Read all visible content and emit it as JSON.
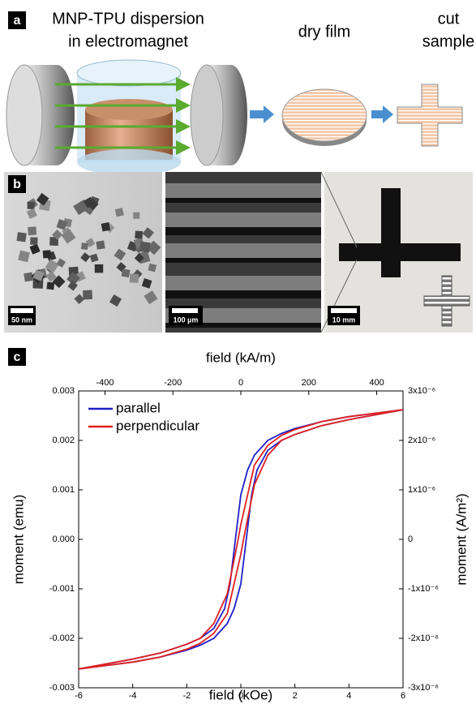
{
  "panels": {
    "a": {
      "label": "a",
      "step1_line1": "MNP-TPU dispersion",
      "step1_line2": "in electromagnet",
      "step2": "dry film",
      "step3_line1": "cut",
      "step3_line2": "sample"
    },
    "b": {
      "label": "b",
      "scale1": "50 nm",
      "scale2": "100 µm",
      "scale3": "10 mm"
    },
    "c": {
      "label": "c"
    }
  },
  "chart_data": {
    "type": "line",
    "x_label": "field (kOe)",
    "x2_label": "field (kA/m)",
    "y_label": "moment (emu)",
    "y2_label": "moment (A/m²)",
    "xlim": [
      -6,
      6
    ],
    "xticks": [
      -6,
      -4,
      -2,
      0,
      2,
      4,
      6
    ],
    "x2lim": [
      -477.5,
      477.5
    ],
    "x2ticks": [
      -400,
      -200,
      0,
      200,
      400
    ],
    "ylim": [
      -0.003,
      0.003
    ],
    "yticks": [
      -0.003,
      -0.002,
      -0.001,
      {
        "value": 0,
        "label": "0.000"
      },
      0.001,
      0.002,
      0.003
    ],
    "y2lim": [
      -3e-06,
      3e-06
    ],
    "y2ticks": [
      {
        "value": -3e-06,
        "label": "-3x10⁻⁶"
      },
      {
        "value": -2e-06,
        "label": "-2x10⁻⁶"
      },
      {
        "value": -1e-06,
        "label": "-1x10⁻⁶"
      },
      0,
      {
        "value": 1e-06,
        "label": "1x10⁻⁶"
      },
      {
        "value": 2e-06,
        "label": "2x10⁻⁶"
      },
      {
        "value": 3e-06,
        "label": "3x10⁻⁶"
      }
    ],
    "legend": "upper left",
    "series": [
      {
        "name": "parallel",
        "color": "#2020c8",
        "x": [
          -6,
          -4,
          -3,
          -2,
          -1.5,
          -1,
          -0.5,
          -0.25,
          0,
          0.2,
          0.4,
          0.6,
          1,
          1.5,
          2,
          3,
          4,
          6,
          4,
          3,
          2,
          1.5,
          1,
          0.5,
          0.25,
          0,
          -0.2,
          -0.4,
          -0.6,
          -1,
          -1.5,
          -2,
          -3,
          -4,
          -6
        ],
        "values": [
          -0.00262,
          -0.00248,
          -0.00238,
          -0.00224,
          -0.00214,
          -0.002,
          -0.0017,
          -0.0014,
          -0.0009,
          0,
          0.0009,
          0.0014,
          0.0018,
          0.002,
          0.00212,
          0.0023,
          0.00242,
          0.00262,
          0.00248,
          0.00238,
          0.00224,
          0.00214,
          0.002,
          0.0017,
          0.0014,
          0.0009,
          0,
          -0.0009,
          -0.0014,
          -0.0018,
          -0.002,
          -0.00212,
          -0.0023,
          -0.00242,
          -0.00262
        ]
      },
      {
        "name": "perpendicular",
        "color": "#e02020",
        "x": [
          -6,
          -4,
          -3,
          -2,
          -1.5,
          -1,
          -0.5,
          0,
          0.1,
          0.5,
          1,
          1.5,
          2,
          3,
          4,
          6,
          4,
          3,
          2,
          1.5,
          1,
          0.5,
          0,
          -0.1,
          -0.5,
          -1,
          -1.5,
          -2,
          -3,
          -4,
          -6
        ],
        "values": [
          -0.00262,
          -0.00248,
          -0.00238,
          -0.00222,
          -0.0021,
          -0.0019,
          -0.0015,
          -0.0003,
          0,
          0.0011,
          0.0017,
          0.002,
          0.00212,
          0.0023,
          0.00242,
          0.00262,
          0.00248,
          0.00238,
          0.00222,
          0.0021,
          0.0019,
          0.0015,
          0.0003,
          0,
          -0.0011,
          -0.0017,
          -0.002,
          -0.00212,
          -0.0023,
          -0.00242,
          -0.00262
        ]
      }
    ]
  }
}
